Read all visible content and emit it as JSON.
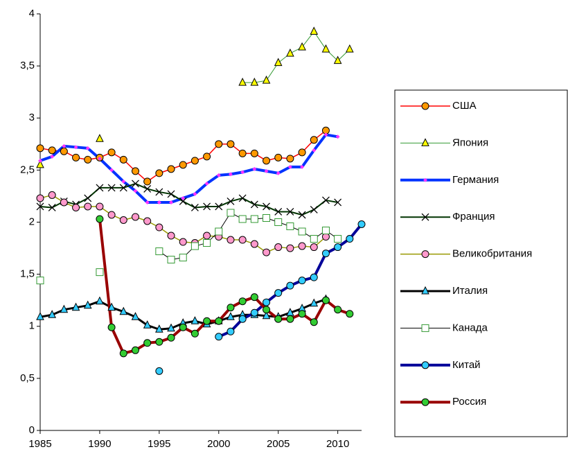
{
  "chart_data": {
    "type": "line",
    "x": [
      1985,
      1986,
      1987,
      1988,
      1989,
      1990,
      1991,
      1992,
      1993,
      1994,
      1995,
      1996,
      1997,
      1998,
      1999,
      2000,
      2001,
      2002,
      2003,
      2004,
      2005,
      2006,
      2007,
      2008,
      2009,
      2010,
      2011,
      2012
    ],
    "xlim": [
      1985,
      2012
    ],
    "xticks": [
      1985,
      1990,
      1995,
      2000,
      2005,
      2010
    ],
    "ylim": [
      0,
      4
    ],
    "yticks": [
      0,
      {
        "value": 0.5,
        "label": "0,5"
      },
      1,
      {
        "value": 1.5,
        "label": "1,5"
      },
      2,
      {
        "value": 2.5,
        "label": "2,5"
      },
      3,
      {
        "value": 3.5,
        "label": "3,5"
      },
      4
    ],
    "legend": "right",
    "series": [
      {
        "name": "США",
        "color": "#ff0000",
        "marker_color": "#ff9900",
        "marker": "circle",
        "line_width": 1.5,
        "values": [
          2.71,
          2.69,
          2.68,
          2.62,
          2.6,
          2.62,
          2.67,
          2.6,
          2.49,
          2.39,
          2.47,
          2.51,
          2.55,
          2.59,
          2.63,
          2.75,
          2.75,
          2.66,
          2.66,
          2.59,
          2.62,
          2.61,
          2.67,
          2.79,
          2.88,
          null,
          null,
          null
        ]
      },
      {
        "name": "Япония",
        "color": "#339933",
        "marker_color": "#ffff00",
        "marker": "triangle",
        "line_width": 1,
        "values": [
          2.55,
          null,
          null,
          null,
          null,
          2.8,
          null,
          null,
          null,
          null,
          null,
          null,
          null,
          null,
          null,
          null,
          null,
          3.34,
          3.34,
          3.36,
          3.53,
          3.62,
          3.68,
          3.83,
          3.66,
          3.55,
          3.66,
          null
        ]
      },
      {
        "name": "Германия",
        "color": "#0033ff",
        "marker_color": "#ff33ff",
        "marker": "diamond",
        "line_width": 4,
        "values": [
          2.59,
          2.63,
          2.73,
          2.72,
          2.71,
          2.61,
          2.5,
          2.39,
          2.3,
          2.19,
          2.19,
          2.19,
          2.23,
          2.27,
          2.37,
          2.45,
          2.46,
          2.48,
          2.51,
          2.49,
          2.47,
          2.53,
          2.53,
          2.69,
          2.84,
          2.82,
          null,
          null
        ]
      },
      {
        "name": "Франция",
        "color": "#003300",
        "marker_color": "#000000",
        "marker": "x",
        "line_width": 2,
        "values": [
          2.15,
          2.14,
          2.2,
          2.17,
          2.23,
          2.33,
          2.33,
          2.33,
          2.37,
          2.32,
          2.29,
          2.27,
          2.2,
          2.14,
          2.15,
          2.15,
          2.2,
          2.23,
          2.17,
          2.15,
          2.1,
          2.1,
          2.07,
          2.12,
          2.21,
          2.19,
          null,
          null
        ]
      },
      {
        "name": "Великобритания",
        "color": "#999900",
        "marker_color": "#ff99cc",
        "marker": "circle",
        "line_width": 1.5,
        "values": [
          2.23,
          2.26,
          2.19,
          2.14,
          2.15,
          2.15,
          2.07,
          2.02,
          2.05,
          2.01,
          1.95,
          1.87,
          1.81,
          1.8,
          1.87,
          1.86,
          1.83,
          1.83,
          1.79,
          1.71,
          1.76,
          1.75,
          1.77,
          1.76,
          1.86,
          null,
          null,
          null
        ]
      },
      {
        "name": "Италия",
        "color": "#000000",
        "marker_color": "#33ccff",
        "marker": "triangle",
        "line_width": 3,
        "values": [
          1.09,
          1.11,
          1.16,
          1.18,
          1.2,
          1.24,
          1.18,
          1.14,
          1.09,
          1.01,
          0.97,
          0.98,
          1.03,
          1.05,
          1.02,
          1.05,
          1.09,
          1.11,
          1.11,
          1.1,
          1.09,
          1.13,
          1.17,
          1.22,
          1.26,
          null,
          null,
          null
        ]
      },
      {
        "name": "Канада",
        "color": "#000000",
        "marker_color": "#ffffff",
        "marker_stroke": "#339933",
        "marker": "square",
        "line_width": 1,
        "values": [
          1.44,
          null,
          null,
          null,
          null,
          1.52,
          null,
          null,
          null,
          null,
          1.72,
          1.64,
          1.66,
          1.77,
          1.8,
          1.91,
          2.09,
          2.03,
          2.03,
          2.04,
          2.0,
          1.96,
          1.91,
          1.84,
          1.92,
          1.84,
          null,
          null
        ]
      },
      {
        "name": "Китай",
        "color": "#000099",
        "marker_color": "#33ccff",
        "marker": "circle",
        "line_width": 4,
        "values": [
          null,
          null,
          null,
          null,
          null,
          null,
          null,
          null,
          null,
          null,
          0.57,
          null,
          null,
          null,
          null,
          0.9,
          0.95,
          1.07,
          1.13,
          1.23,
          1.32,
          1.39,
          1.44,
          1.47,
          1.7,
          1.76,
          1.84,
          1.98
        ]
      },
      {
        "name": "Россия",
        "color": "#990000",
        "marker_color": "#33cc33",
        "marker": "circle",
        "line_width": 4,
        "values": [
          null,
          null,
          null,
          null,
          null,
          2.03,
          0.99,
          0.74,
          0.77,
          0.84,
          0.85,
          0.89,
          0.99,
          0.93,
          1.05,
          1.05,
          1.18,
          1.24,
          1.28,
          1.16,
          1.07,
          1.07,
          1.12,
          1.04,
          1.25,
          1.16,
          1.12,
          null
        ]
      }
    ]
  }
}
